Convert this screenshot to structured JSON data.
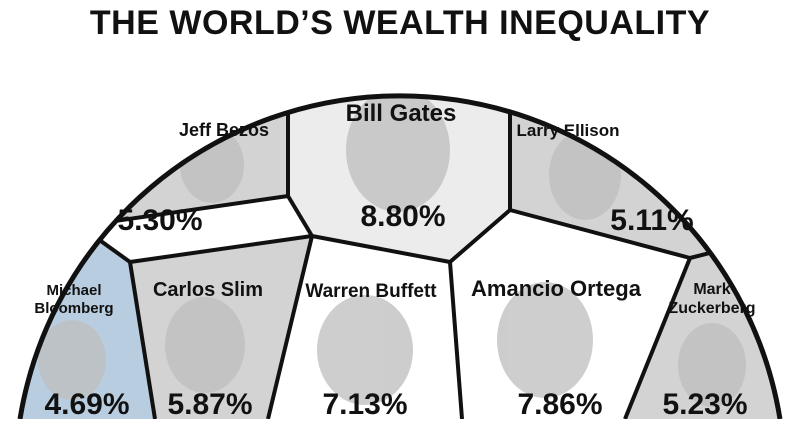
{
  "title": "THE WORLD’S WEALTH INEQUALITY",
  "colors": {
    "outline": "#111111",
    "panel_gray": "#d3d3d3",
    "panel_light": "#ececec",
    "panel_blue": "#b9cde0"
  },
  "people": [
    {
      "id": "bill-gates",
      "name": "Bill Gates",
      "share": "8.80%"
    },
    {
      "id": "jeff-bezos",
      "name": "Jeff Bezos",
      "share": "5.30%"
    },
    {
      "id": "larry-ellison",
      "name": "Larry Ellison",
      "share": "5.11%"
    },
    {
      "id": "michael-bloomberg",
      "name_lines": [
        "Michael",
        "Bloomberg"
      ],
      "share": "4.69%"
    },
    {
      "id": "carlos-slim",
      "name": "Carlos Slim",
      "share": "5.87%"
    },
    {
      "id": "warren-buffett",
      "name": "Warren Buffett",
      "share": "7.13%"
    },
    {
      "id": "amancio-ortega",
      "name": "Amancio Ortega",
      "share": "7.86%"
    },
    {
      "id": "mark-zuckerberg",
      "name_lines": [
        "Mark",
        "Zuckerberg"
      ],
      "share": "5.23%"
    }
  ]
}
